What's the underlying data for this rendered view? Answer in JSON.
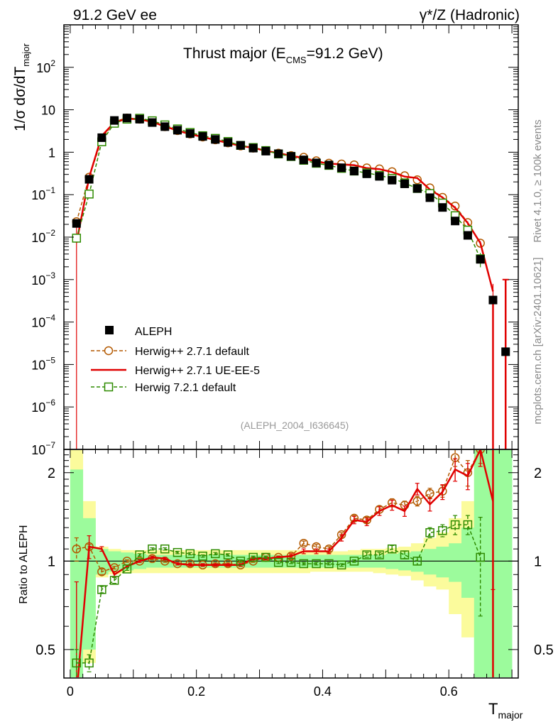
{
  "header": {
    "left": "91.2 GeV ee",
    "right": "γ*/Z (Hadronic)"
  },
  "side_labels": {
    "rivet": "Rivet 4.1.0, ≥ 100k events",
    "mcplots": "mcplots.cern.ch [arXiv:2401.10621]"
  },
  "chart_data": {
    "type": "scatter",
    "title": "Thrust major (E_CMS=91.2 GeV)",
    "title_parts": {
      "main": "Thrust major (E",
      "sub": "CMS",
      "rest": "=91.2 GeV)"
    },
    "analysis_id": "(ALEPH_2004_I636645)",
    "xlabel": "T_major",
    "xlabel_parts": {
      "main": "T",
      "sub": "major"
    },
    "ylabel_parts": {
      "a": "1/σ  dσ/dT",
      "sub": "major"
    },
    "ratio_ylabel": "Ratio to ALEPH",
    "xlim": [
      -0.01,
      0.71
    ],
    "ylim_log": [
      1e-07,
      1000
    ],
    "ratio_ylim_log": [
      0.4,
      2.4
    ],
    "x_ticks": [
      {
        "v": 0,
        "label": "0"
      },
      {
        "v": 0.2,
        "label": "0.2"
      },
      {
        "v": 0.4,
        "label": "0.4"
      },
      {
        "v": 0.6,
        "label": "0.6"
      }
    ],
    "y_ticks": [
      {
        "exp": -7,
        "base": "10",
        "sup": "−7"
      },
      {
        "exp": -6,
        "base": "10",
        "sup": "−6"
      },
      {
        "exp": -5,
        "base": "10",
        "sup": "−5"
      },
      {
        "exp": -4,
        "base": "10",
        "sup": "−4"
      },
      {
        "exp": -3,
        "base": "10",
        "sup": "−3"
      },
      {
        "exp": -2,
        "base": "10",
        "sup": "−2"
      },
      {
        "exp": -1,
        "base": "10",
        "sup": "−1"
      },
      {
        "exp": 0,
        "base": "1",
        "sup": ""
      },
      {
        "exp": 1,
        "base": "10",
        "sup": ""
      },
      {
        "exp": 2,
        "base": "10",
        "sup": "2"
      }
    ],
    "ratio_ticks": [
      {
        "v": 0.5,
        "label": "0.5"
      },
      {
        "v": 1,
        "label": "1"
      },
      {
        "v": 2,
        "label": "2"
      }
    ],
    "legend": [
      {
        "label": "ALEPH",
        "style": "data"
      },
      {
        "label": "Herwig++ 2.7.1 default",
        "style": "h271d"
      },
      {
        "label": "Herwig++ 2.7.1 UE-EE-5",
        "style": "h271ue"
      },
      {
        "label": "Herwig 7.2.1 default",
        "style": "h721"
      }
    ],
    "colors": {
      "data": "#000000",
      "h271d": "#b35900",
      "h271ue": "#e00000",
      "h721": "#2e8b00",
      "band_inner": "#9cfb9c",
      "band_outer": "#fbfb9c"
    },
    "bins": {
      "lo": [
        0,
        0.02,
        0.04,
        0.06,
        0.08,
        0.1,
        0.12,
        0.14,
        0.16,
        0.18,
        0.2,
        0.22,
        0.24,
        0.26,
        0.28,
        0.3,
        0.32,
        0.34,
        0.36,
        0.38,
        0.4,
        0.42,
        0.44,
        0.46,
        0.48,
        0.5,
        0.52,
        0.54,
        0.56,
        0.58,
        0.6,
        0.62,
        0.64,
        0.66,
        0.68
      ],
      "hi": [
        0.02,
        0.04,
        0.06,
        0.08,
        0.1,
        0.12,
        0.14,
        0.16,
        0.18,
        0.2,
        0.22,
        0.24,
        0.26,
        0.28,
        0.3,
        0.32,
        0.34,
        0.36,
        0.38,
        0.4,
        0.42,
        0.44,
        0.46,
        0.48,
        0.5,
        0.52,
        0.54,
        0.56,
        0.58,
        0.6,
        0.62,
        0.64,
        0.66,
        0.68,
        0.7
      ],
      "x": [
        0.01,
        0.03,
        0.05,
        0.07,
        0.09,
        0.11,
        0.13,
        0.15,
        0.17,
        0.19,
        0.21,
        0.23,
        0.25,
        0.27,
        0.29,
        0.31,
        0.33,
        0.35,
        0.37,
        0.39,
        0.41,
        0.43,
        0.45,
        0.47,
        0.49,
        0.51,
        0.53,
        0.55,
        0.57,
        0.59,
        0.61,
        0.63,
        0.65,
        0.67,
        0.69
      ]
    },
    "data": {
      "y": [
        0.021,
        0.23,
        2.2,
        5.6,
        6.4,
        6.0,
        5.0,
        4.0,
        3.3,
        2.75,
        2.35,
        2.0,
        1.7,
        1.45,
        1.25,
        1.06,
        0.92,
        0.8,
        0.66,
        0.56,
        0.5,
        0.43,
        0.36,
        0.31,
        0.27,
        0.22,
        0.18,
        0.14,
        0.085,
        0.05,
        0.024,
        0.011,
        0.003,
        0.00033,
        2e-05
      ],
      "band_inner": [
        [
          0.38,
          2.05
        ],
        [
          0.5,
          1.4
        ],
        [
          0.9,
          1.1
        ],
        [
          0.92,
          1.08
        ],
        [
          0.93,
          1.07
        ],
        [
          0.94,
          1.06
        ],
        [
          0.95,
          1.05
        ],
        [
          0.95,
          1.05
        ],
        [
          0.95,
          1.05
        ],
        [
          0.95,
          1.05
        ],
        [
          0.95,
          1.05
        ],
        [
          0.95,
          1.05
        ],
        [
          0.95,
          1.05
        ],
        [
          0.95,
          1.05
        ],
        [
          0.95,
          1.05
        ],
        [
          0.95,
          1.05
        ],
        [
          0.95,
          1.05
        ],
        [
          0.95,
          1.05
        ],
        [
          0.95,
          1.05
        ],
        [
          0.95,
          1.05
        ],
        [
          0.95,
          1.05
        ],
        [
          0.95,
          1.05
        ],
        [
          0.95,
          1.05
        ],
        [
          0.95,
          1.05
        ],
        [
          0.95,
          1.05
        ],
        [
          0.94,
          1.06
        ],
        [
          0.93,
          1.07
        ],
        [
          0.92,
          1.08
        ],
        [
          0.9,
          1.1
        ],
        [
          0.88,
          1.12
        ],
        [
          0.85,
          1.15
        ],
        [
          0.75,
          1.3
        ],
        [
          0.4,
          2.4
        ],
        [
          0.4,
          2.4
        ],
        [
          0.4,
          2.4
        ]
      ],
      "band_outer": [
        [
          0.38,
          2.4
        ],
        [
          0.45,
          1.6
        ],
        [
          0.88,
          1.12
        ],
        [
          0.9,
          1.1
        ],
        [
          0.91,
          1.09
        ],
        [
          0.91,
          1.09
        ],
        [
          0.91,
          1.09
        ],
        [
          0.91,
          1.09
        ],
        [
          0.91,
          1.09
        ],
        [
          0.91,
          1.09
        ],
        [
          0.91,
          1.09
        ],
        [
          0.91,
          1.09
        ],
        [
          0.91,
          1.09
        ],
        [
          0.91,
          1.09
        ],
        [
          0.91,
          1.09
        ],
        [
          0.91,
          1.09
        ],
        [
          0.91,
          1.09
        ],
        [
          0.91,
          1.09
        ],
        [
          0.91,
          1.09
        ],
        [
          0.92,
          1.08
        ],
        [
          0.92,
          1.08
        ],
        [
          0.92,
          1.08
        ],
        [
          0.92,
          1.09
        ],
        [
          0.92,
          1.1
        ],
        [
          0.91,
          1.1
        ],
        [
          0.9,
          1.11
        ],
        [
          0.89,
          1.12
        ],
        [
          0.86,
          1.15
        ],
        [
          0.82,
          1.2
        ],
        [
          0.8,
          1.25
        ],
        [
          0.66,
          1.4
        ],
        [
          0.55,
          1.6
        ],
        [
          0.4,
          2.4
        ],
        [
          0.4,
          2.4
        ],
        [
          0.4,
          2.4
        ]
      ]
    },
    "series": [
      {
        "name": "Herwig++ 2.7.1 default",
        "key": "h271d",
        "ratio": [
          1.1,
          1.12,
          0.92,
          0.95,
          1.0,
          1.0,
          1.02,
          1.0,
          0.98,
          0.98,
          0.97,
          0.98,
          0.98,
          0.97,
          1.0,
          1.03,
          1.03,
          1.04,
          1.15,
          1.12,
          1.1,
          1.23,
          1.4,
          1.38,
          1.5,
          1.58,
          1.55,
          1.6,
          1.7,
          1.73,
          2.25,
          2.0,
          2.4,
          null,
          null
        ],
        "ratio_err": [
          0.1,
          0.02,
          0.02,
          0.01,
          0.01,
          0.01,
          0.01,
          0.01,
          0.01,
          0.01,
          0.01,
          0.01,
          0.01,
          0.01,
          0.01,
          0.01,
          0.01,
          0.01,
          0.02,
          0.02,
          0.02,
          0.02,
          0.03,
          0.03,
          0.04,
          0.05,
          0.05,
          0.06,
          0.07,
          0.08,
          0.15,
          0.2,
          0.25,
          null,
          null
        ]
      },
      {
        "name": "Herwig++ 2.7.1 UE-EE-5",
        "key": "h271ue",
        "ratio": [
          0.35,
          1.12,
          1.1,
          0.9,
          0.96,
          1.0,
          1.03,
          1.02,
          0.98,
          0.97,
          0.97,
          0.97,
          0.97,
          0.97,
          1.02,
          1.02,
          1.03,
          1.04,
          1.08,
          1.08,
          1.08,
          1.2,
          1.38,
          1.36,
          1.48,
          1.55,
          1.48,
          1.76,
          1.56,
          1.72,
          2.05,
          1.95,
          2.4,
          1.6,
          null
        ],
        "ratio_err": [
          0.5,
          0.1,
          0.02,
          0.02,
          0.01,
          0.01,
          0.01,
          0.01,
          0.01,
          0.01,
          0.01,
          0.01,
          0.01,
          0.01,
          0.01,
          0.01,
          0.01,
          0.02,
          0.02,
          0.02,
          0.02,
          0.03,
          0.04,
          0.04,
          0.05,
          0.06,
          0.06,
          0.08,
          0.08,
          0.1,
          0.18,
          0.2,
          0.3,
          0.8,
          null
        ]
      },
      {
        "name": "Herwig 7.2.1 default",
        "key": "h721",
        "ratio": [
          0.45,
          0.45,
          0.8,
          0.86,
          0.94,
          1.05,
          1.1,
          1.1,
          1.07,
          1.06,
          1.04,
          1.06,
          1.05,
          1.0,
          1.03,
          1.03,
          0.99,
          0.99,
          0.98,
          0.98,
          0.98,
          0.97,
          1.0,
          1.05,
          1.05,
          1.1,
          1.05,
          1.0,
          1.25,
          1.27,
          1.33,
          1.33,
          1.03,
          null,
          null
        ],
        "ratio_err": [
          0.05,
          0.03,
          0.02,
          0.02,
          0.01,
          0.01,
          0.01,
          0.01,
          0.01,
          0.01,
          0.01,
          0.01,
          0.01,
          0.01,
          0.01,
          0.01,
          0.01,
          0.01,
          0.01,
          0.01,
          0.01,
          0.01,
          0.01,
          0.02,
          0.02,
          0.03,
          0.03,
          0.03,
          0.05,
          0.06,
          0.1,
          0.1,
          0.38,
          null,
          null
        ]
      }
    ]
  }
}
